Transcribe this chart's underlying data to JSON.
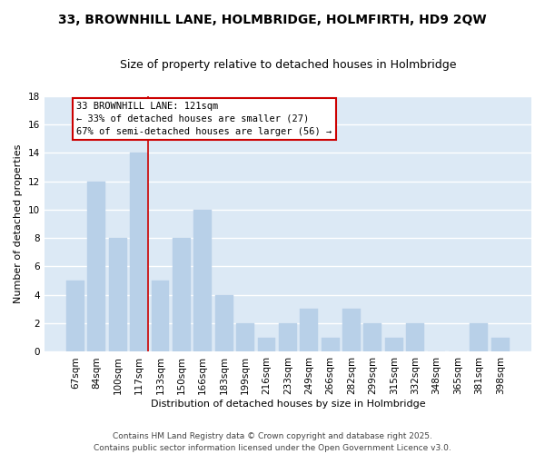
{
  "title": "33, BROWNHILL LANE, HOLMBRIDGE, HOLMFIRTH, HD9 2QW",
  "subtitle": "Size of property relative to detached houses in Holmbridge",
  "xlabel": "Distribution of detached houses by size in Holmbridge",
  "ylabel": "Number of detached properties",
  "categories": [
    "67sqm",
    "84sqm",
    "100sqm",
    "117sqm",
    "133sqm",
    "150sqm",
    "166sqm",
    "183sqm",
    "199sqm",
    "216sqm",
    "233sqm",
    "249sqm",
    "266sqm",
    "282sqm",
    "299sqm",
    "315sqm",
    "332sqm",
    "348sqm",
    "365sqm",
    "381sqm",
    "398sqm"
  ],
  "values": [
    5,
    12,
    8,
    14,
    5,
    8,
    10,
    4,
    2,
    1,
    2,
    3,
    1,
    3,
    2,
    1,
    2,
    0,
    0,
    2,
    1
  ],
  "bar_color": "#b8d0e8",
  "bar_edge_color": "#b8d0e8",
  "bg_color": "#dce9f5",
  "grid_color": "#ffffff",
  "annotation_text_line1": "33 BROWNHILL LANE: 121sqm",
  "annotation_text_line2": "← 33% of detached houses are smaller (27)",
  "annotation_text_line3": "67% of semi-detached houses are larger (56) →",
  "annotation_box_color": "#ffffff",
  "annotation_border_color": "#cc0000",
  "vline_color": "#cc0000",
  "vline_x": 3.42,
  "ylim": [
    0,
    18
  ],
  "yticks": [
    0,
    2,
    4,
    6,
    8,
    10,
    12,
    14,
    16,
    18
  ],
  "footer_line1": "Contains HM Land Registry data © Crown copyright and database right 2025.",
  "footer_line2": "Contains public sector information licensed under the Open Government Licence v3.0.",
  "title_fontsize": 10,
  "subtitle_fontsize": 9,
  "axis_label_fontsize": 8,
  "tick_fontsize": 7.5,
  "annotation_fontsize": 7.5,
  "footer_fontsize": 6.5
}
